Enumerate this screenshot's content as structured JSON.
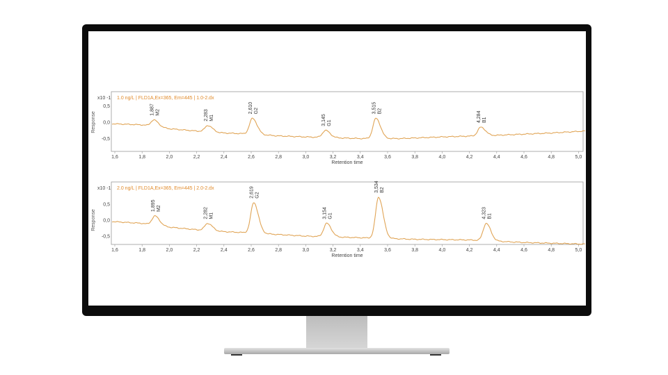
{
  "chart_data": [
    {
      "type": "line",
      "title": "1.0 ng/L | FLD1A,Ex=365, Em=445 | 1.0-2.dx",
      "xlabel": "Retention time",
      "ylabel": "Response",
      "y_multiplier": "x10 -1",
      "xlim": [
        1.58,
        5.05
      ],
      "ylim": [
        -0.95,
        0.95
      ],
      "xticks": [
        "1,6",
        "1,8",
        "2,0",
        "2,2",
        "2,4",
        "2,6",
        "2,8",
        "3,0",
        "3,2",
        "3,4",
        "3,6",
        "3,8",
        "4,0",
        "4,2",
        "4,4",
        "4,6",
        "4,8",
        "5,0"
      ],
      "yticks": [
        "0,5",
        "0,0",
        "-0,5"
      ],
      "baseline": [
        [
          1.6,
          -0.05
        ],
        [
          1.8,
          -0.08
        ],
        [
          2.0,
          -0.2
        ],
        [
          2.2,
          -0.27
        ],
        [
          2.4,
          -0.33
        ],
        [
          2.6,
          -0.36
        ],
        [
          2.8,
          -0.42
        ],
        [
          3.0,
          -0.45
        ],
        [
          3.4,
          -0.5
        ],
        [
          3.7,
          -0.5
        ],
        [
          4.0,
          -0.45
        ],
        [
          4.4,
          -0.4
        ],
        [
          4.8,
          -0.33
        ],
        [
          5.05,
          -0.27
        ]
      ],
      "peaks": [
        {
          "rt": "1,887",
          "name": "M2",
          "x": 1.887,
          "y": 0.07
        },
        {
          "rt": "2,283",
          "name": "M1",
          "x": 2.283,
          "y": -0.1
        },
        {
          "rt": "2,610",
          "name": "G2",
          "x": 2.61,
          "y": 0.12
        },
        {
          "rt": "3,145",
          "name": "G1",
          "x": 3.145,
          "y": -0.25
        },
        {
          "rt": "3,515",
          "name": "B2",
          "x": 3.515,
          "y": 0.12
        },
        {
          "rt": "4,284",
          "name": "B1",
          "x": 4.284,
          "y": -0.15
        }
      ]
    },
    {
      "type": "line",
      "title": "2.0 ng/L | FLD1A,Ex=365, Em=445 | 2.0-2.dx",
      "xlabel": "Retention time",
      "ylabel": "Response",
      "y_multiplier": "x10 -1",
      "xlim": [
        1.58,
        5.05
      ],
      "ylim": [
        -0.95,
        1.05
      ],
      "xticks": [
        "1,6",
        "1,8",
        "2,0",
        "2,2",
        "2,4",
        "2,6",
        "2,8",
        "3,0",
        "3,2",
        "3,4",
        "3,6",
        "3,8",
        "4,0",
        "4,2",
        "4,4",
        "4,6",
        "4,8",
        "5,0"
      ],
      "yticks": [
        "0,5",
        "0,0",
        "-0,5"
      ],
      "baseline": [
        [
          1.6,
          -0.05
        ],
        [
          1.8,
          -0.1
        ],
        [
          2.0,
          -0.22
        ],
        [
          2.2,
          -0.3
        ],
        [
          2.4,
          -0.36
        ],
        [
          2.6,
          -0.4
        ],
        [
          2.8,
          -0.45
        ],
        [
          3.0,
          -0.5
        ],
        [
          3.4,
          -0.55
        ],
        [
          3.8,
          -0.6
        ],
        [
          4.2,
          -0.62
        ],
        [
          4.6,
          -0.7
        ],
        [
          5.05,
          -0.75
        ]
      ],
      "peaks": [
        {
          "rt": "1,895",
          "name": "M2",
          "x": 1.895,
          "y": 0.13
        },
        {
          "rt": "2,282",
          "name": "M1",
          "x": 2.282,
          "y": -0.1
        },
        {
          "rt": "2,619",
          "name": "G2",
          "x": 2.619,
          "y": 0.55
        },
        {
          "rt": "3,154",
          "name": "G1",
          "x": 3.154,
          "y": -0.1
        },
        {
          "rt": "3,534",
          "name": "B2",
          "x": 3.534,
          "y": 0.72
        },
        {
          "rt": "4,323",
          "name": "B1",
          "x": 4.323,
          "y": -0.1
        }
      ]
    }
  ],
  "colors": {
    "trace": "#e0a455",
    "title": "#e08a2a",
    "axis": "#888888"
  }
}
